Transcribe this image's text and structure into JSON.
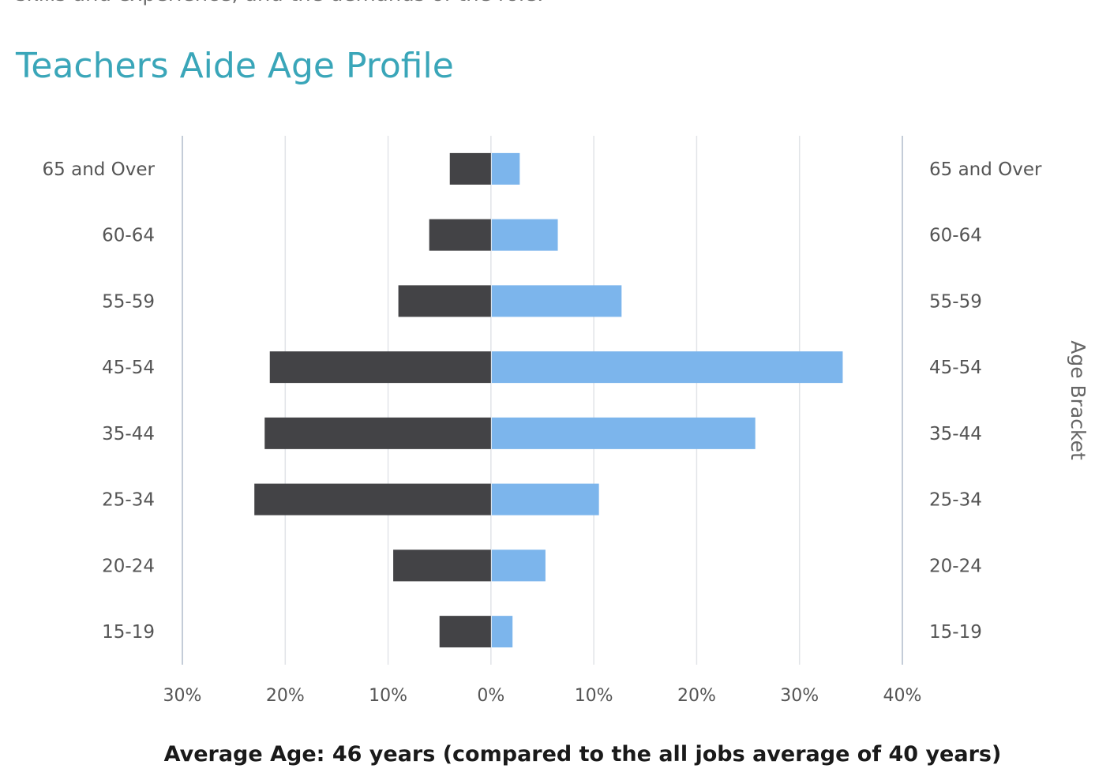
{
  "page": {
    "intro_text": "skills and experience, and the demands of the role.",
    "title": "Teachers Aide Age Profile",
    "caption": "Average Age: 46 years (compared to the all jobs average of 40 years)"
  },
  "colors": {
    "title": "#3aa6b9",
    "left_series": "#434346",
    "right_series": "#7cb5ec",
    "grid": "#e1e4e8",
    "axis": "#c4ccd8"
  },
  "chart_data": {
    "type": "bar",
    "orientation": "horizontal",
    "layout": "population-pyramid",
    "categories": [
      "65 and Over",
      "60-64",
      "55-59",
      "45-54",
      "35-44",
      "25-34",
      "20-24",
      "15-19"
    ],
    "series": [
      {
        "side": "left",
        "values": [
          4,
          6,
          9,
          21.5,
          22,
          23,
          9.5,
          5
        ]
      },
      {
        "side": "right",
        "values": [
          2.8,
          6.5,
          12.7,
          34.2,
          25.7,
          10.5,
          5.3,
          2.1
        ]
      }
    ],
    "x_ticks": [
      -30,
      -20,
      -10,
      0,
      10,
      20,
      30,
      40
    ],
    "x_tick_labels": [
      "30%",
      "20%",
      "10%",
      "0%",
      "10%",
      "20%",
      "30%",
      "40%"
    ],
    "xlim": [
      -30,
      40
    ],
    "right_axis_title": "Age Bracket",
    "grid": true,
    "legend": "none"
  }
}
